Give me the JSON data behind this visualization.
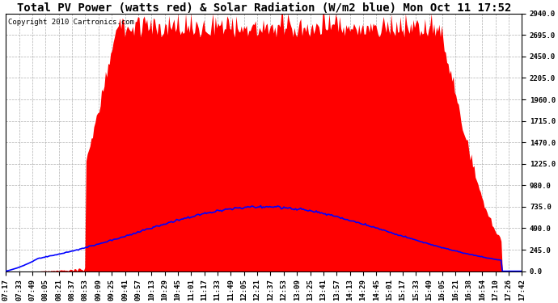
{
  "title": "Total PV Power (watts red) & Solar Radiation (W/m2 blue) Mon Oct 11 17:52",
  "copyright": "Copyright 2010 Cartronics.com",
  "background_color": "#ffffff",
  "plot_bg_color": "#ffffff",
  "y_ticks": [
    0.0,
    245.0,
    490.0,
    735.0,
    980.0,
    1225.0,
    1470.0,
    1715.0,
    1960.0,
    2205.0,
    2450.0,
    2695.0,
    2940.0
  ],
  "ylim": [
    0,
    2940
  ],
  "x_labels": [
    "07:17",
    "07:33",
    "07:49",
    "08:05",
    "08:21",
    "08:37",
    "08:53",
    "09:09",
    "09:25",
    "09:41",
    "09:57",
    "10:13",
    "10:29",
    "10:45",
    "11:01",
    "11:17",
    "11:33",
    "11:49",
    "12:05",
    "12:21",
    "12:37",
    "12:53",
    "13:09",
    "13:25",
    "13:41",
    "13:57",
    "14:13",
    "14:29",
    "14:45",
    "15:01",
    "15:17",
    "15:33",
    "15:49",
    "16:05",
    "16:21",
    "16:38",
    "16:54",
    "17:10",
    "17:26",
    "17:42"
  ],
  "pv_color": "#ff0000",
  "solar_color": "#0000ff",
  "grid_color": "#b0b0b0",
  "title_fontsize": 10,
  "tick_fontsize": 6.5,
  "copyright_fontsize": 6.5
}
